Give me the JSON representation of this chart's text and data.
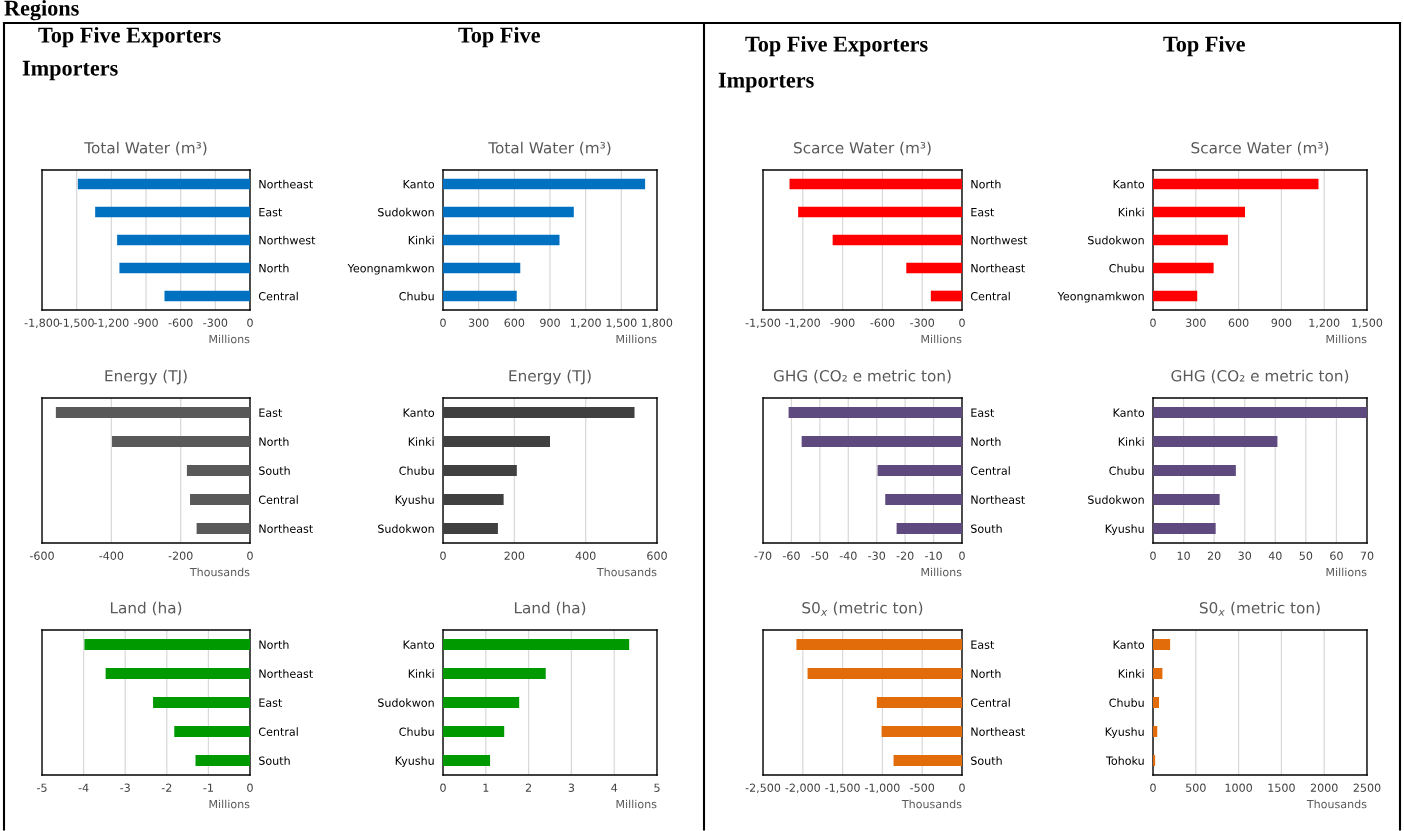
{
  "chart_data": [
    {
      "type": "other",
      "annotations": [
        "Regions",
        "Top Five Exporters",
        "Top Five",
        "Importers"
      ]
    },
    {
      "type": "other",
      "annotations": [
        "Top Five Exporters",
        "Top Five",
        "Importers"
      ]
    },
    {
      "type": "bar",
      "orientation": "horizontal",
      "title": "Total Water (m³)",
      "xlabel": "Millions",
      "categories": [
        "Northeast",
        "East",
        "Northwest",
        "North",
        "Central"
      ],
      "values": [
        -1490,
        -1340,
        -1150,
        -1130,
        -740
      ],
      "color": "#0070c0",
      "xlim": [
        -1800,
        0
      ],
      "xticks": [
        {
          "value": -1800,
          "label": "-1,800"
        },
        {
          "value": -1500,
          "label": "-1,500"
        },
        {
          "value": -1200,
          "label": "-1,200"
        },
        -900,
        -600,
        -300,
        0
      ],
      "grid": "x"
    },
    {
      "type": "bar",
      "orientation": "horizontal",
      "title": "Total Water (m³)",
      "xlabel": "Millions",
      "categories": [
        "Kanto",
        "Sudokwon",
        "Kinki",
        "Yeongnamkwon",
        "Chubu"
      ],
      "values": [
        1700,
        1100,
        980,
        650,
        620
      ],
      "color": "#0070c0",
      "xlim": [
        0,
        1800
      ],
      "xticks": [
        0,
        300,
        600,
        900,
        {
          "value": 1200,
          "label": "1,200"
        },
        {
          "value": 1500,
          "label": "1,500"
        },
        {
          "value": 1800,
          "label": "1,800"
        }
      ],
      "grid": "x"
    },
    {
      "type": "bar",
      "orientation": "horizontal",
      "title": "Scarce Water (m³)",
      "xlabel": "Millions",
      "categories": [
        "North",
        "East",
        "Northwest",
        "Northeast",
        "Central"
      ],
      "values": [
        -1300,
        -1235,
        -975,
        -420,
        -235
      ],
      "color": "#ff0000",
      "xlim": [
        -1500,
        0
      ],
      "xticks": [
        {
          "value": -1500,
          "label": "-1,500"
        },
        {
          "value": -1200,
          "label": "-1,200"
        },
        -900,
        -600,
        -300,
        0
      ],
      "grid": "x"
    },
    {
      "type": "bar",
      "orientation": "horizontal",
      "title": "Scarce Water (m³)",
      "xlabel": "Millions",
      "categories": [
        "Kanto",
        "Kinki",
        "Sudokwon",
        "Chubu",
        "Yeongnamkwon"
      ],
      "values": [
        1160,
        645,
        525,
        425,
        310
      ],
      "color": "#ff0000",
      "xlim": [
        0,
        1500
      ],
      "xticks": [
        0,
        300,
        600,
        900,
        {
          "value": 1200,
          "label": "1,200"
        },
        {
          "value": 1500,
          "label": "1,500"
        }
      ],
      "grid": "x"
    },
    {
      "type": "bar",
      "orientation": "horizontal",
      "title": "Energy (TJ)",
      "xlabel": "Thousands",
      "categories": [
        "East",
        "North",
        "South",
        "Central",
        "Northeast"
      ],
      "values": [
        -560,
        -398,
        -182,
        -173,
        -154
      ],
      "color": "#595959",
      "xlim": [
        -600,
        0
      ],
      "xticks": [
        -600,
        -400,
        -200,
        0
      ],
      "grid": "x"
    },
    {
      "type": "bar",
      "orientation": "horizontal",
      "title": "Energy (TJ)",
      "xlabel": "Thousands",
      "categories": [
        "Kanto",
        "Kinki",
        "Chubu",
        "Kyushu",
        "Sudokwon"
      ],
      "values": [
        537,
        300,
        207,
        170,
        154
      ],
      "color": "#404040",
      "xlim": [
        0,
        600
      ],
      "xticks": [
        0,
        200,
        400,
        600
      ],
      "grid": "x"
    },
    {
      "type": "bar",
      "orientation": "horizontal",
      "title": "GHG (CO₂ e metric ton)",
      "xlabel": "Millions",
      "categories": [
        "East",
        "North",
        "Central",
        "Northeast",
        "South"
      ],
      "values": [
        -61,
        -56.4,
        -29.7,
        -27,
        -23
      ],
      "color": "#5e4a7e",
      "xlim": [
        -70,
        0
      ],
      "xticks": [
        -70,
        -60,
        -50,
        -40,
        -30,
        -20,
        -10,
        0
      ],
      "grid": "x"
    },
    {
      "type": "bar",
      "orientation": "horizontal",
      "title": "GHG (CO₂ e metric ton)",
      "xlabel": "Millions",
      "categories": [
        "Kanto",
        "Kinki",
        "Chubu",
        "Sudokwon",
        "Kyushu"
      ],
      "values": [
        70,
        40.7,
        27.1,
        21.8,
        20.5
      ],
      "color": "#5e4a7e",
      "xlim": [
        0,
        70
      ],
      "xticks": [
        0,
        10,
        20,
        30,
        40,
        50,
        60,
        70
      ],
      "grid": "x"
    },
    {
      "type": "bar",
      "orientation": "horizontal",
      "title": "Land (ha)",
      "xlabel": "Millions",
      "categories": [
        "North",
        "Northeast",
        "East",
        "Central",
        "South"
      ],
      "values": [
        -3.98,
        -3.47,
        -2.33,
        -1.82,
        -1.31
      ],
      "color": "#009900",
      "xlim": [
        -5,
        0
      ],
      "xticks": [
        -5,
        -4,
        -3,
        -2,
        -1,
        0
      ],
      "grid": "x"
    },
    {
      "type": "bar",
      "orientation": "horizontal",
      "title": "Land (ha)",
      "xlabel": "Millions",
      "categories": [
        "Kanto",
        "Kinki",
        "Sudokwon",
        "Chubu",
        "Kyushu"
      ],
      "values": [
        4.35,
        2.4,
        1.78,
        1.43,
        1.1
      ],
      "color": "#009900",
      "xlim": [
        0,
        5
      ],
      "xticks": [
        0,
        1,
        2,
        3,
        4,
        5
      ],
      "grid": "x"
    },
    {
      "type": "bar",
      "orientation": "horizontal",
      "title": "S0$_{x}$ (metric ton)",
      "xlabel": "Thousands",
      "categories": [
        "East",
        "North",
        "Central",
        "Northeast",
        "South"
      ],
      "values": [
        -2080,
        -1940,
        -1070,
        -1010,
        -860
      ],
      "color": "#e36c0a",
      "xlim": [
        -2500,
        0
      ],
      "xticks": [
        {
          "value": -2500,
          "label": "-2,500"
        },
        {
          "value": -2000,
          "label": "-2,000"
        },
        {
          "value": -1500,
          "label": "-1,500"
        },
        {
          "value": -1000,
          "label": "-1,000"
        },
        -500,
        0
      ],
      "grid": "x"
    },
    {
      "type": "bar",
      "orientation": "horizontal",
      "title": "S0$_{x}$ (metric ton)",
      "xlabel": "Thousands",
      "categories": [
        "Kanto",
        "Kinki",
        "Chubu",
        "Kyushu",
        "Tohoku"
      ],
      "values": [
        200,
        110,
        70,
        50,
        25
      ],
      "color": "#e36c0a",
      "xlim": [
        0,
        2500
      ],
      "xticks": [
        0,
        500,
        1000,
        1500,
        2000,
        2500
      ],
      "grid": "x"
    }
  ]
}
